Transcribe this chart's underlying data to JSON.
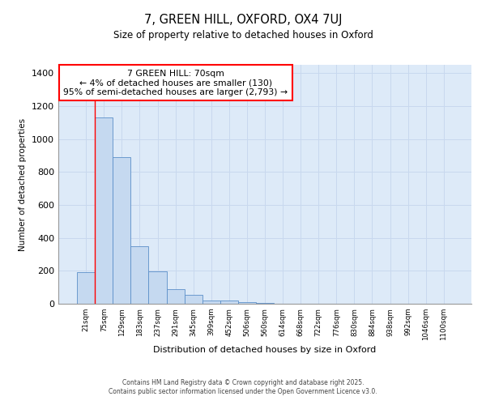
{
  "title_line1": "7, GREEN HILL, OXFORD, OX4 7UJ",
  "title_line2": "Size of property relative to detached houses in Oxford",
  "xlabel": "Distribution of detached houses by size in Oxford",
  "ylabel": "Number of detached properties",
  "categories": [
    "21sqm",
    "75sqm",
    "129sqm",
    "183sqm",
    "237sqm",
    "291sqm",
    "345sqm",
    "399sqm",
    "452sqm",
    "506sqm",
    "560sqm",
    "614sqm",
    "668sqm",
    "722sqm",
    "776sqm",
    "830sqm",
    "884sqm",
    "938sqm",
    "992sqm",
    "1046sqm",
    "1100sqm"
  ],
  "bar_values": [
    190,
    1130,
    890,
    350,
    195,
    90,
    55,
    20,
    20,
    10,
    5,
    0,
    0,
    0,
    0,
    0,
    0,
    0,
    0,
    0,
    0
  ],
  "bar_color": "#c5d9f0",
  "bar_edge_color": "#5b8fc9",
  "annotation_text": "7 GREEN HILL: 70sqm\n← 4% of detached houses are smaller (130)\n95% of semi-detached houses are larger (2,793) →",
  "ylim": [
    0,
    1450
  ],
  "yticks": [
    0,
    200,
    400,
    600,
    800,
    1000,
    1200,
    1400
  ],
  "grid_color": "#c8d8ee",
  "background_color": "#ddeaf8",
  "footer_line1": "Contains HM Land Registry data © Crown copyright and database right 2025.",
  "footer_line2": "Contains public sector information licensed under the Open Government Licence v3.0."
}
